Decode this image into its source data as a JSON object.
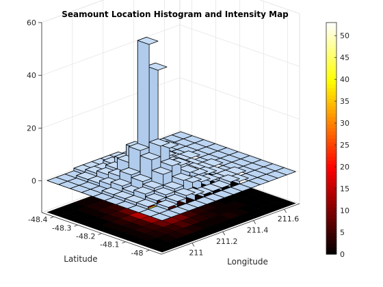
{
  "chart_data": {
    "type": "heatmap",
    "title": "Seamount Location Histogram and Intensity Map",
    "xlabel": "Longitude",
    "ylabel": "Latitude",
    "zlabel": "",
    "xlim": [
      210.8,
      211.7
    ],
    "ylim": [
      -48.45,
      -47.95
    ],
    "zlim": [
      -12,
      60
    ],
    "x_ticks": [
      "211",
      "211.2",
      "211.4",
      "211.6"
    ],
    "x_tick_values": [
      211.0,
      211.2,
      211.4,
      211.6
    ],
    "y_ticks": [
      "-48",
      "-48.1",
      "-48.2",
      "-48.3",
      "-48.4"
    ],
    "y_tick_values": [
      -48.0,
      -48.1,
      -48.2,
      -48.3,
      -48.4
    ],
    "z_ticks": [
      "0",
      "20",
      "40",
      "60"
    ],
    "z_tick_values": [
      0,
      20,
      40,
      60
    ],
    "colorbar": {
      "min": 0,
      "max": 53,
      "ticks": [
        "0",
        "5",
        "10",
        "15",
        "20",
        "25",
        "30",
        "35",
        "40",
        "45",
        "50"
      ],
      "tick_values": [
        0,
        5,
        10,
        15,
        20,
        25,
        30,
        35,
        40,
        45,
        50
      ],
      "colormap": "hot"
    },
    "histogram_surface_level": 0,
    "intensity_map_level": -12,
    "grid_columns": 15,
    "grid_rows": 10,
    "bar_color": "#bcd5f2",
    "counts": [
      [
        0,
        0,
        0,
        0,
        0,
        0,
        0,
        0,
        0,
        0,
        0,
        0,
        0,
        0,
        0
      ],
      [
        0,
        0,
        1,
        2,
        3,
        2,
        1,
        1,
        1,
        2,
        1,
        0,
        0,
        0,
        0
      ],
      [
        0,
        1,
        2,
        3,
        4,
        6,
        4,
        3,
        2,
        1,
        1,
        1,
        0,
        0,
        0
      ],
      [
        0,
        1,
        3,
        4,
        8,
        10,
        9,
        5,
        3,
        2,
        1,
        0,
        0,
        0,
        0
      ],
      [
        0,
        1,
        2,
        5,
        12,
        16,
        14,
        6,
        3,
        2,
        1,
        1,
        0,
        0,
        0
      ],
      [
        0,
        1,
        3,
        6,
        14,
        53,
        42,
        8,
        4,
        2,
        1,
        0,
        0,
        0,
        0
      ],
      [
        0,
        0,
        2,
        4,
        8,
        12,
        10,
        5,
        3,
        2,
        1,
        1,
        0,
        0,
        0
      ],
      [
        0,
        0,
        1,
        3,
        4,
        6,
        5,
        3,
        2,
        1,
        1,
        0,
        0,
        0,
        0
      ],
      [
        0,
        0,
        1,
        2,
        2,
        3,
        2,
        2,
        1,
        1,
        0,
        0,
        0,
        0,
        0
      ],
      [
        0,
        0,
        0,
        1,
        1,
        1,
        1,
        1,
        0,
        0,
        0,
        0,
        0,
        0,
        0
      ]
    ]
  }
}
